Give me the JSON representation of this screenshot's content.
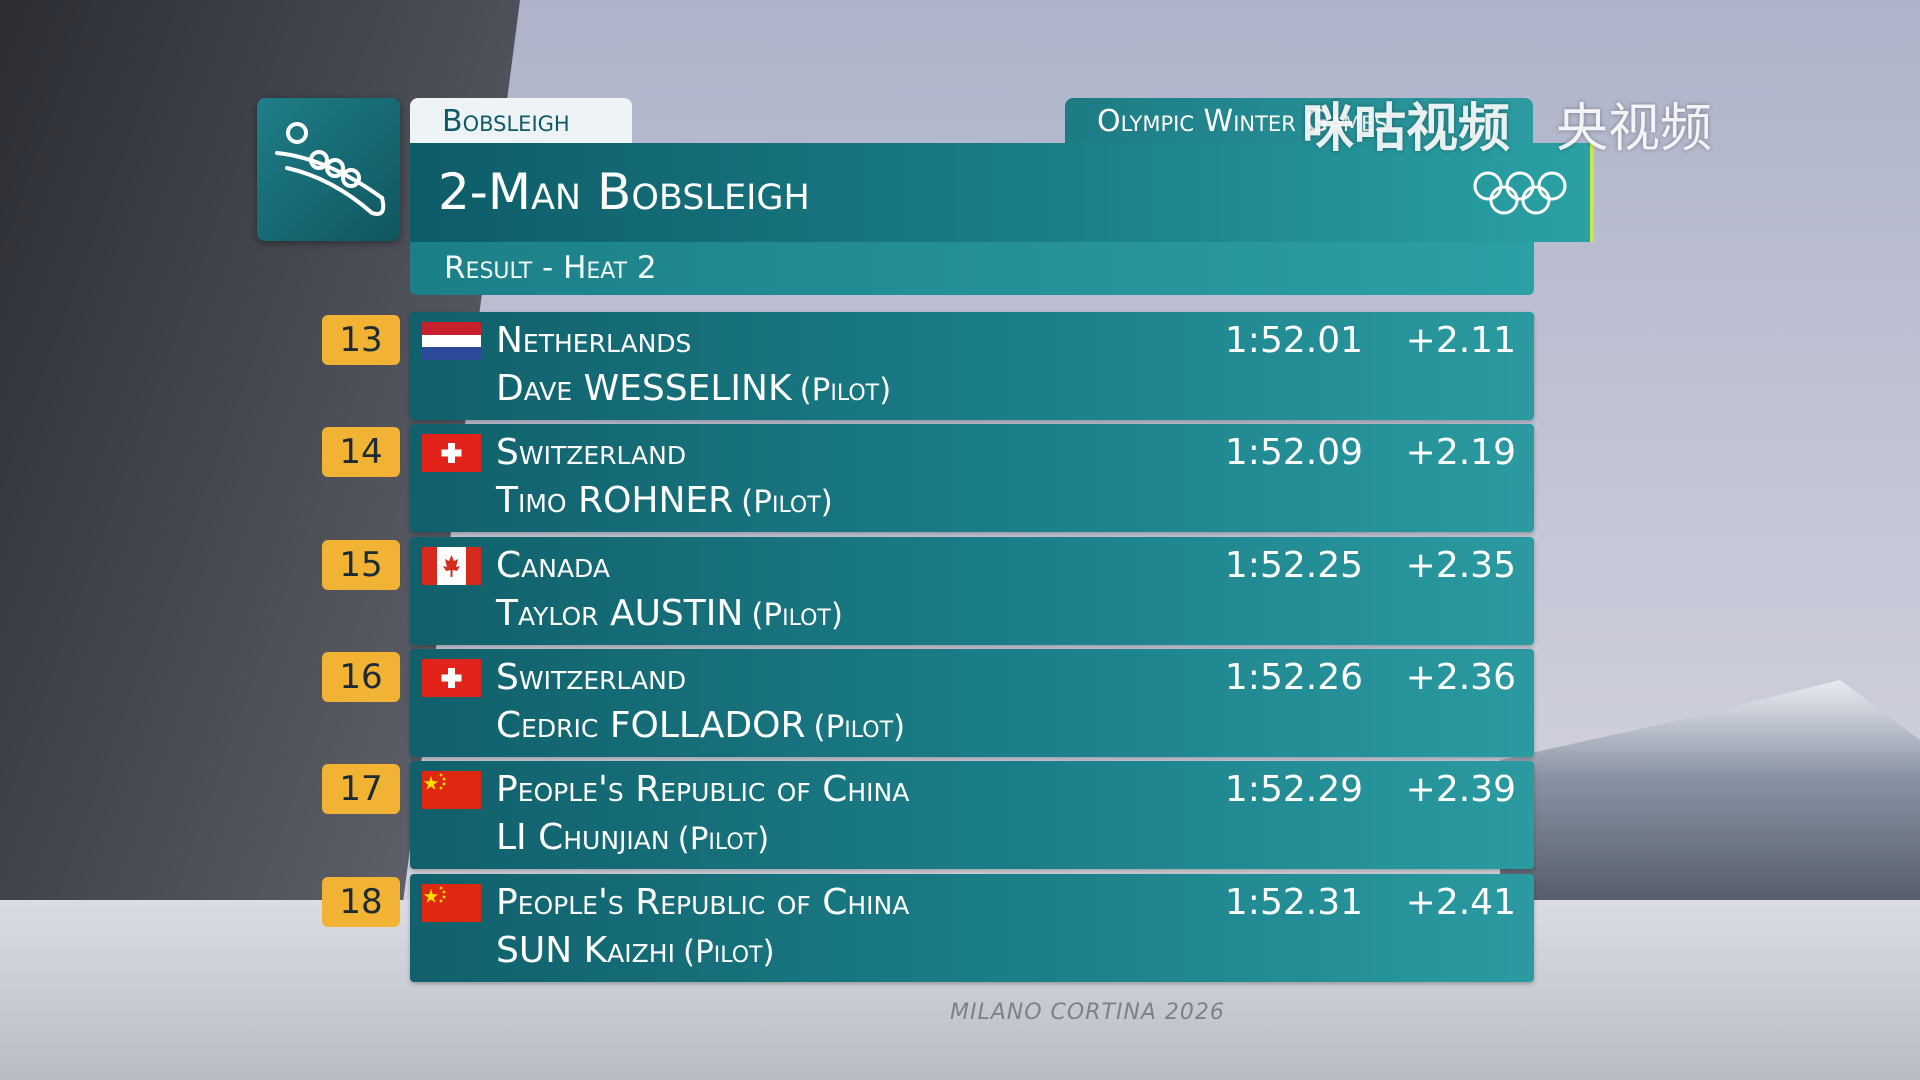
{
  "header": {
    "sport": "Bobsleigh",
    "event_series": "Olympic Winter Games",
    "title": "2-Man Bobsleigh",
    "subtitle": "Result - Heat 2"
  },
  "rows": [
    {
      "rank": "13",
      "country": "Netherlands",
      "athlete": "Dave WESSELINK",
      "role": "(Pilot)",
      "time": "1:52.01",
      "behind": "+2.11"
    },
    {
      "rank": "14",
      "country": "Switzerland",
      "athlete": "Timo ROHNER",
      "role": "(Pilot)",
      "time": "1:52.09",
      "behind": "+2.19"
    },
    {
      "rank": "15",
      "country": "Canada",
      "athlete": "Taylor AUSTIN",
      "role": "(Pilot)",
      "time": "1:52.25",
      "behind": "+2.35"
    },
    {
      "rank": "16",
      "country": "Switzerland",
      "athlete": "Cedric FOLLADOR",
      "role": "(Pilot)",
      "time": "1:52.26",
      "behind": "+2.36"
    },
    {
      "rank": "17",
      "country": "People's Republic of China",
      "athlete": "LI Chunjian",
      "role": "(Pilot)",
      "time": "1:52.29",
      "behind": "+2.39"
    },
    {
      "rank": "18",
      "country": "People's Republic of China",
      "athlete": "SUN Kaizhi",
      "role": "(Pilot)",
      "time": "1:52.31",
      "behind": "+2.41"
    }
  ],
  "watermarks": [
    "咪咕视频",
    "央视频"
  ],
  "venue_sign": "MILANO CORTINA 2026"
}
